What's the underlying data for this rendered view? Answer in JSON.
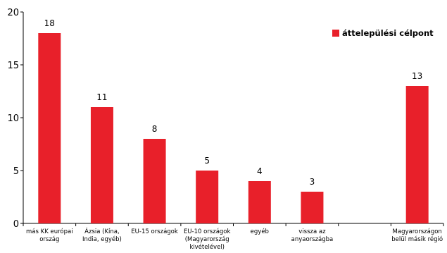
{
  "chart_data": {
    "type": "bar",
    "categories": [
      [
        "más KK európai",
        "ország"
      ],
      [
        "Ázsia (Kína,",
        "India, egyéb)"
      ],
      [
        "EU-15 országok"
      ],
      [
        "EU-10 országok",
        "(Magyarország",
        "kivételével)"
      ],
      [
        "egyéb"
      ],
      [
        "vissza az",
        "anyaországba"
      ],
      [
        ""
      ],
      [
        "Magyarországon",
        "belül másik régió"
      ]
    ],
    "series": [
      {
        "name": "áttelepülési célpont",
        "values": [
          18,
          11,
          8,
          5,
          4,
          3,
          null,
          13
        ]
      }
    ],
    "data_labels": [
      "18",
      "11",
      "8",
      "5",
      "4",
      "3",
      "",
      "13"
    ],
    "ylim": [
      0,
      20
    ],
    "yticks": [
      0,
      5,
      10,
      15,
      20
    ],
    "grid": false,
    "legend_position": "top-right",
    "bar_color": "#e8202a"
  }
}
